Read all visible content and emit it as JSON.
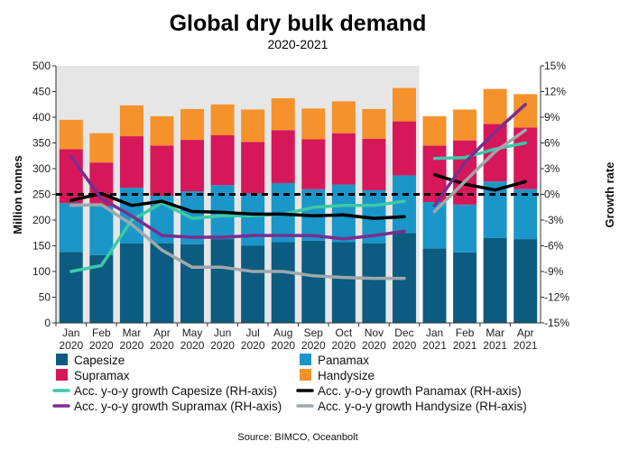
{
  "chart_data": {
    "type": "bar",
    "stacked": true,
    "title": "Global dry bulk demand",
    "subtitle": "2020-2021",
    "ylabel": "Million tonnes",
    "y2label": "Growth rate",
    "ylim": [
      0,
      500
    ],
    "y2lim": [
      -15,
      15
    ],
    "yticks": [
      "0",
      "50",
      "100",
      "150",
      "200",
      "250",
      "300",
      "350",
      "400",
      "450",
      "500"
    ],
    "y2ticks": [
      "-15%",
      "-12%",
      "-9%",
      "-6%",
      "-3%",
      "0%",
      "3%",
      "6%",
      "9%",
      "12%",
      "15%"
    ],
    "categories": [
      [
        "Jan",
        "2020"
      ],
      [
        "Feb",
        "2020"
      ],
      [
        "Mar",
        "2020"
      ],
      [
        "Apr",
        "2020"
      ],
      [
        "May",
        "2020"
      ],
      [
        "Jun",
        "2020"
      ],
      [
        "Jul",
        "2020"
      ],
      [
        "Aug",
        "2020"
      ],
      [
        "Sep",
        "2020"
      ],
      [
        "Oct",
        "2020"
      ],
      [
        "Nov",
        "2020"
      ],
      [
        "Dec",
        "2020"
      ],
      [
        "Jan",
        "2021"
      ],
      [
        "Feb",
        "2021"
      ],
      [
        "Mar",
        "2021"
      ],
      [
        "Apr",
        "2021"
      ]
    ],
    "shaded_region": "Jan 2020 - Dec 2020",
    "bar_series": [
      {
        "name": "Capesize",
        "color": "#0b5c80",
        "values": [
          138,
          132,
          155,
          155,
          153,
          163,
          150,
          157,
          160,
          157,
          155,
          175,
          145,
          137,
          165,
          163
        ]
      },
      {
        "name": "Panamax",
        "color": "#1a96c8",
        "values": [
          95,
          95,
          108,
          92,
          103,
          105,
          102,
          115,
          100,
          112,
          103,
          112,
          90,
          93,
          110,
          97
        ]
      },
      {
        "name": "Supramax",
        "color": "#d6175a",
        "values": [
          105,
          85,
          100,
          98,
          100,
          97,
          100,
          103,
          97,
          100,
          100,
          105,
          110,
          125,
          112,
          120
        ]
      },
      {
        "name": "Handysize",
        "color": "#f5922b",
        "values": [
          57,
          57,
          60,
          57,
          60,
          60,
          63,
          62,
          60,
          62,
          58,
          65,
          57,
          60,
          68,
          65
        ]
      }
    ],
    "line_series": [
      {
        "name": "Acc. y-o-y growth Capesize (RH-axis)",
        "color": "#3dc8a8",
        "axis": "right",
        "values": [
          -9.0,
          -8.3,
          -3.0,
          -1.0,
          -2.8,
          -2.5,
          -2.5,
          -2.3,
          -1.5,
          -1.3,
          -1.3,
          -0.8,
          4.2,
          4.3,
          5.3,
          6.0
        ]
      },
      {
        "name": "Acc. y-o-y growth Panamax (RH-axis)",
        "color": "#000000",
        "axis": "right",
        "values": [
          -0.7,
          0.1,
          -1.3,
          -0.8,
          -2.0,
          -2.1,
          -2.3,
          -2.3,
          -2.5,
          -2.4,
          -2.8,
          -2.6,
          2.3,
          1.2,
          0.5,
          1.5
        ]
      },
      {
        "name": "Acc. y-o-y growth Supramax (RH-axis)",
        "color": "#7b2d8e",
        "axis": "right",
        "values": [
          4.4,
          -0.5,
          -2.5,
          -4.8,
          -5.0,
          -5.0,
          -4.8,
          -4.8,
          -4.8,
          -5.2,
          -4.8,
          -4.3,
          -1.3,
          3.7,
          7.3,
          10.5
        ]
      },
      {
        "name": "Acc. y-o-y growth Handysize (RH-axis)",
        "color": "#a0a7ab",
        "axis": "right",
        "values": [
          -1.3,
          -1.2,
          -3.5,
          -6.5,
          -8.5,
          -8.5,
          -9.0,
          -9.0,
          -9.5,
          -9.7,
          -9.8,
          -9.8,
          -2.0,
          1.5,
          5.0,
          7.5
        ]
      }
    ],
    "reference_line": {
      "axis": "right",
      "value": 0,
      "style": "dashed"
    },
    "legend_position": "bottom",
    "grid": false,
    "source": "Source: BIMCO, Oceanbolt"
  }
}
